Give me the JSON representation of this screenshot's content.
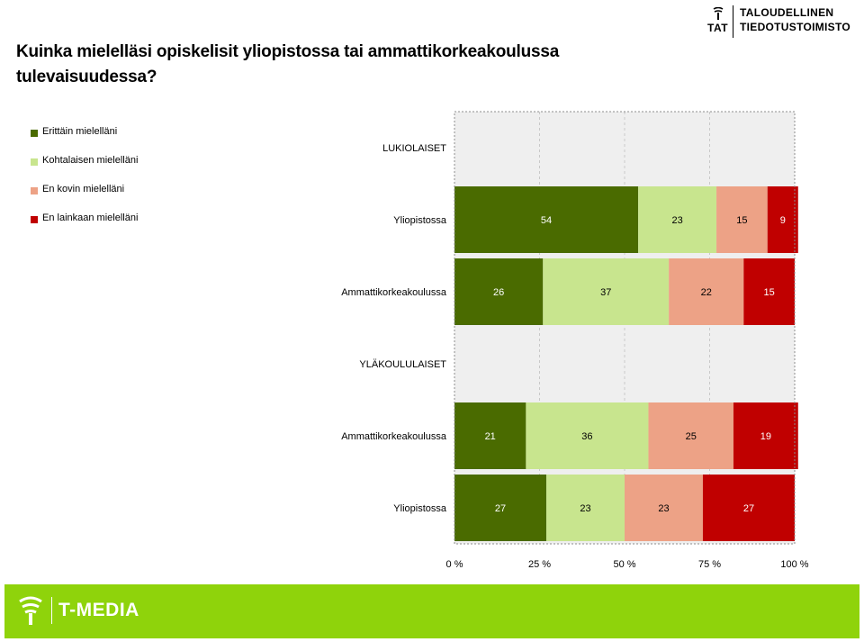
{
  "title": "Kuinka mielelläsi opiskelisit yliopistossa tai ammattikorkeakoulussa tulevaisuudessa?",
  "logo": {
    "abbr": "TAT",
    "name_line1": "TALOUDELLINEN",
    "name_line2": "TIEDOTUSTOIMISTO",
    "icon": "tat-emblem-icon"
  },
  "footer": {
    "text": "T-MEDIA",
    "icon": "t-media-emblem-icon",
    "color": "#8fd30b"
  },
  "colors": {
    "plot_background": "#efefef",
    "erittain": "#4a6b00",
    "kohtalaisen": "#c8e58e",
    "en_kovin": "#eda286",
    "en_lainkaan": "#c00000"
  },
  "chart_data": {
    "type": "bar",
    "orientation": "horizontal",
    "stacked": true,
    "title": "Kuinka mielelläsi opiskelisit yliopistossa tai ammattikorkeakoulussa tulevaisuudessa?",
    "xlim": [
      0,
      100
    ],
    "x_ticks": [
      "0 %",
      "25 %",
      "50 %",
      "75 %",
      "100 %"
    ],
    "grid": "vertical dashed",
    "legend_position": "left",
    "categories": [
      "LUKIOLAISET",
      "Yliopistossa",
      "Ammattikorkeakoulussa",
      "YLÄKOULULAISET",
      "Ammattikorkeakoulussa",
      "Yliopistossa"
    ],
    "series": [
      {
        "name": "Erittäin mielelläni",
        "color": "#4a6b00",
        "values": [
          null,
          54,
          26,
          null,
          21,
          27
        ]
      },
      {
        "name": "Kohtalaisen mielelläni",
        "color": "#c8e58e",
        "values": [
          null,
          23,
          37,
          null,
          36,
          23
        ]
      },
      {
        "name": "En kovin mielelläni",
        "color": "#eda286",
        "values": [
          null,
          15,
          22,
          null,
          25,
          23
        ]
      },
      {
        "name": "En lainkaan mielelläni",
        "color": "#c00000",
        "values": [
          null,
          9,
          15,
          null,
          19,
          27
        ]
      }
    ]
  }
}
